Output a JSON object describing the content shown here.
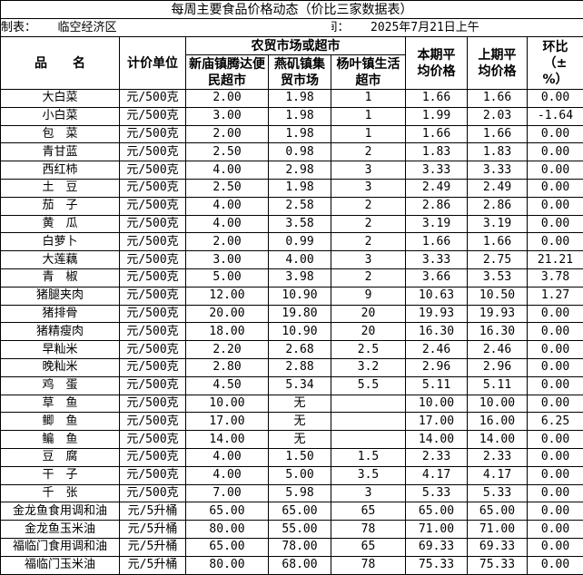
{
  "title": "每周主要食品价格动态（价比三家数据表）",
  "meta": {
    "maker_label": "制表：",
    "maker_value": "临空经济区",
    "time_label": "采价时间：",
    "time_value": "2025年7月21日上午"
  },
  "headers": {
    "name": "品　　名",
    "unit": "计价单位",
    "market_group": "农贸市场或超市",
    "market1": "新庙镇腾达便民超市",
    "market2": "燕矶镇集贸市场",
    "market3": "杨叶镇生活超市",
    "current_avg": "本期平均价格",
    "previous_avg": "上期平均价格",
    "change": "环比（±%）"
  },
  "rows": [
    [
      "大白菜",
      "元/500克",
      "2.00",
      "1.98",
      "1",
      "1.66",
      "1.66",
      "0.00"
    ],
    [
      "小白菜",
      "元/500克",
      "3.00",
      "1.98",
      "1",
      "1.99",
      "2.03",
      "-1.64"
    ],
    [
      "包　菜",
      "元/500克",
      "2.00",
      "1.98",
      "1",
      "1.66",
      "1.66",
      "0.00"
    ],
    [
      "青甘蓝",
      "元/500克",
      "2.50",
      "0.98",
      "2",
      "1.83",
      "1.83",
      "0.00"
    ],
    [
      "西红柿",
      "元/500克",
      "4.00",
      "2.98",
      "3",
      "3.33",
      "3.33",
      "0.00"
    ],
    [
      "土　豆",
      "元/500克",
      "2.50",
      "1.98",
      "3",
      "2.49",
      "2.49",
      "0.00"
    ],
    [
      "茄　子",
      "元/500克",
      "4.00",
      "2.58",
      "2",
      "2.86",
      "2.86",
      "0.00"
    ],
    [
      "黄　瓜",
      "元/500克",
      "4.00",
      "3.58",
      "2",
      "3.19",
      "3.19",
      "0.00"
    ],
    [
      "白萝卜",
      "元/500克",
      "2.00",
      "0.99",
      "2",
      "1.66",
      "1.66",
      "0.00"
    ],
    [
      "大莲藕",
      "元/500克",
      "3.00",
      "4.00",
      "3",
      "3.33",
      "2.75",
      "21.21"
    ],
    [
      "青　椒",
      "元/500克",
      "5.00",
      "3.98",
      "2",
      "3.66",
      "3.53",
      "3.78"
    ],
    [
      "猪腿夹肉",
      "元/500克",
      "12.00",
      "10.90",
      "9",
      "10.63",
      "10.50",
      "1.27"
    ],
    [
      "猪排骨",
      "元/500克",
      "20.00",
      "19.80",
      "20",
      "19.93",
      "19.93",
      "0.00"
    ],
    [
      "猪精瘦肉",
      "元/500克",
      "18.00",
      "10.90",
      "20",
      "16.30",
      "16.30",
      "0.00"
    ],
    [
      "早籼米",
      "元/500克",
      "2.20",
      "2.68",
      "2.5",
      "2.46",
      "2.46",
      "0.00"
    ],
    [
      "晚籼米",
      "元/500克",
      "2.80",
      "2.88",
      "3.2",
      "2.96",
      "2.96",
      "0.00"
    ],
    [
      "鸡　蛋",
      "元/500克",
      "4.50",
      "5.34",
      "5.5",
      "5.11",
      "5.11",
      "0.00"
    ],
    [
      "草　鱼",
      "元/500克",
      "10.00",
      "无",
      "",
      "10.00",
      "10.00",
      "0.00"
    ],
    [
      "鲫　鱼",
      "元/500克",
      "17.00",
      "无",
      "",
      "17.00",
      "16.00",
      "6.25"
    ],
    [
      "鳊　鱼",
      "元/500克",
      "14.00",
      "无",
      "",
      "14.00",
      "14.00",
      "0.00"
    ],
    [
      "豆　腐",
      "元/500克",
      "4.00",
      "1.50",
      "1.5",
      "2.33",
      "2.33",
      "0.00"
    ],
    [
      "干　子",
      "元/500克",
      "4.00",
      "5.00",
      "3.5",
      "4.17",
      "4.17",
      "0.00"
    ],
    [
      "千　张",
      "元/500克",
      "7.00",
      "5.98",
      "3",
      "5.33",
      "5.33",
      "0.00"
    ],
    [
      "金龙鱼食用调和油",
      "元/5升桶",
      "65.00",
      "65.00",
      "65",
      "65.00",
      "65.00",
      "0.00"
    ],
    [
      "金龙鱼玉米油",
      "元/5升桶",
      "80.00",
      "55.00",
      "78",
      "71.00",
      "71.00",
      "0.00"
    ],
    [
      "福临门食用调和油",
      "元/5升桶",
      "65.00",
      "78.00",
      "65",
      "69.33",
      "69.33",
      "0.00"
    ],
    [
      "福临门玉米油",
      "元/5升桶",
      "80.00",
      "68.00",
      "78",
      "75.33",
      "75.33",
      "0.00"
    ]
  ]
}
